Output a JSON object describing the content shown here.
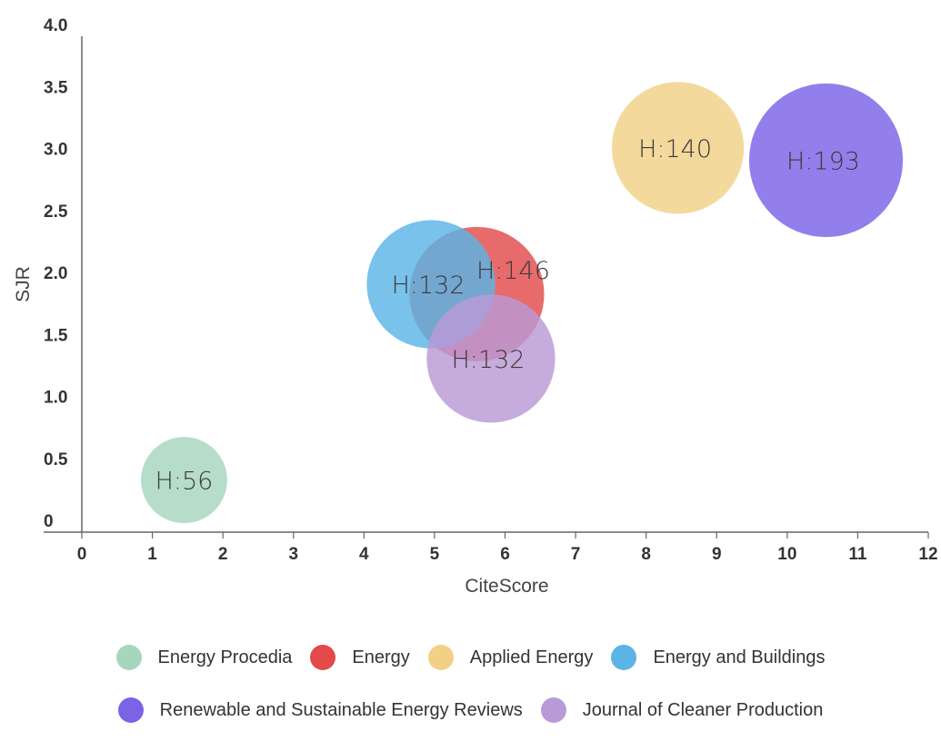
{
  "chart_data": {
    "type": "scatter",
    "xlabel": "CiteScore",
    "ylabel": "SJR",
    "xlim": [
      0,
      12
    ],
    "ylim": [
      0,
      4
    ],
    "x_ticks": [
      "0",
      "1",
      "2",
      "3",
      "4",
      "5",
      "6",
      "7",
      "8",
      "9",
      "10",
      "11",
      "12"
    ],
    "y_ticks": [
      "0",
      "0.5",
      "1.0",
      "1.5",
      "2.0",
      "2.5",
      "3.0",
      "3.5",
      "4.0"
    ],
    "grid": false,
    "legend_position": "bottom",
    "series": [
      {
        "name": "Energy Procedia",
        "color": "#a6d6bd",
        "x": 1.45,
        "y": 0.42,
        "h_index": 56,
        "label": "H:56"
      },
      {
        "name": "Energy",
        "color": "#e34a4a",
        "x": 5.6,
        "y": 1.92,
        "h_index": 146,
        "label": "H:146"
      },
      {
        "name": "Applied Energy",
        "color": "#f2d186",
        "x": 8.45,
        "y": 3.1,
        "h_index": 140,
        "label": "H:140"
      },
      {
        "name": "Energy and Buildings",
        "color": "#5ab4e6",
        "x": 4.95,
        "y": 2.0,
        "h_index": 132,
        "label": "H:132"
      },
      {
        "name": "Renewable and Sustainable Energy Reviews",
        "color": "#7b63e6",
        "x": 10.55,
        "y": 3.0,
        "h_index": 193,
        "label": "H:193"
      },
      {
        "name": "Journal of Cleaner Production",
        "color": "#b99ad6",
        "x": 5.8,
        "y": 1.4,
        "h_index": 132,
        "label": "H:132"
      }
    ],
    "legend_rows": [
      [
        0,
        1,
        2,
        3
      ],
      [
        4,
        5
      ]
    ]
  }
}
